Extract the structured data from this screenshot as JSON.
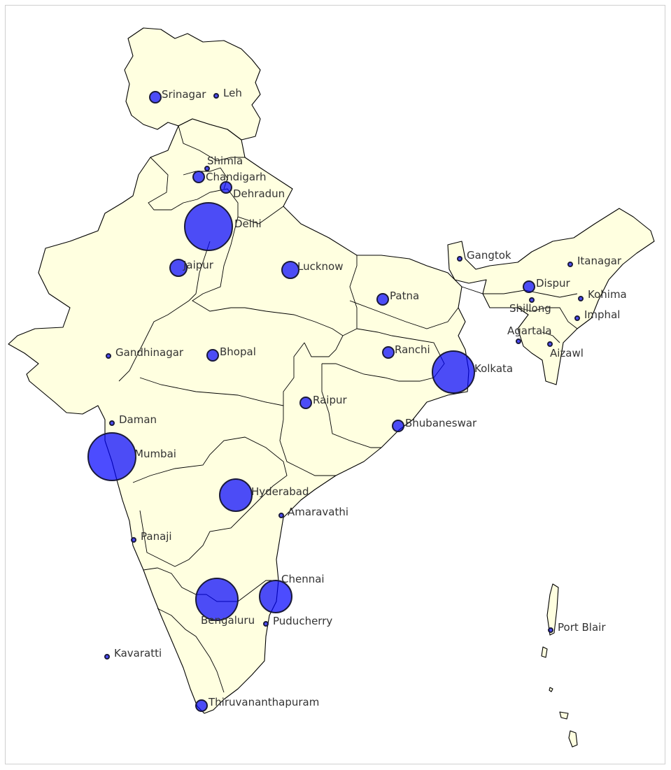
{
  "map": {
    "land_color": "#ffffe0",
    "border_color": "#000000",
    "bubble_color": "#0000ff",
    "bubble_edge": "#1a1a3a"
  },
  "cities": [
    {
      "name": "Delhi",
      "size": "xl"
    },
    {
      "name": "Mumbai",
      "size": "xl"
    },
    {
      "name": "Kolkata",
      "size": "l"
    },
    {
      "name": "Chennai",
      "size": "m"
    },
    {
      "name": "Bengaluru",
      "size": "l"
    },
    {
      "name": "Hyderabad",
      "size": "m"
    },
    {
      "name": "Jaipur",
      "size": "s"
    },
    {
      "name": "Lucknow",
      "size": "s"
    },
    {
      "name": "Patna",
      "size": "xs"
    },
    {
      "name": "Bhopal",
      "size": "xs"
    },
    {
      "name": "Ranchi",
      "size": "xs"
    },
    {
      "name": "Raipur",
      "size": "xs"
    },
    {
      "name": "Bhubaneswar",
      "size": "xs"
    },
    {
      "name": "Srinagar",
      "size": "xs"
    },
    {
      "name": "Leh",
      "size": "dot"
    },
    {
      "name": "Shimla",
      "size": "dot"
    },
    {
      "name": "Chandigarh",
      "size": "xs"
    },
    {
      "name": "Dehradun",
      "size": "xs"
    },
    {
      "name": "Gandhinagar",
      "size": "dot"
    },
    {
      "name": "Daman",
      "size": "dot"
    },
    {
      "name": "Panaji",
      "size": "dot"
    },
    {
      "name": "Amaravathi",
      "size": "dot"
    },
    {
      "name": "Puducherry",
      "size": "dot"
    },
    {
      "name": "Thiruvananthapuram",
      "size": "xs"
    },
    {
      "name": "Kavaratti",
      "size": "dot"
    },
    {
      "name": "Port Blair",
      "size": "dot"
    },
    {
      "name": "Gangtok",
      "size": "dot"
    },
    {
      "name": "Itanagar",
      "size": "dot"
    },
    {
      "name": "Dispur",
      "size": "xs"
    },
    {
      "name": "Shillong",
      "size": "dot"
    },
    {
      "name": "Kohima",
      "size": "dot"
    },
    {
      "name": "Imphal",
      "size": "dot"
    },
    {
      "name": "Agartala",
      "size": "dot"
    },
    {
      "name": "Aizawl",
      "size": "dot"
    }
  ]
}
